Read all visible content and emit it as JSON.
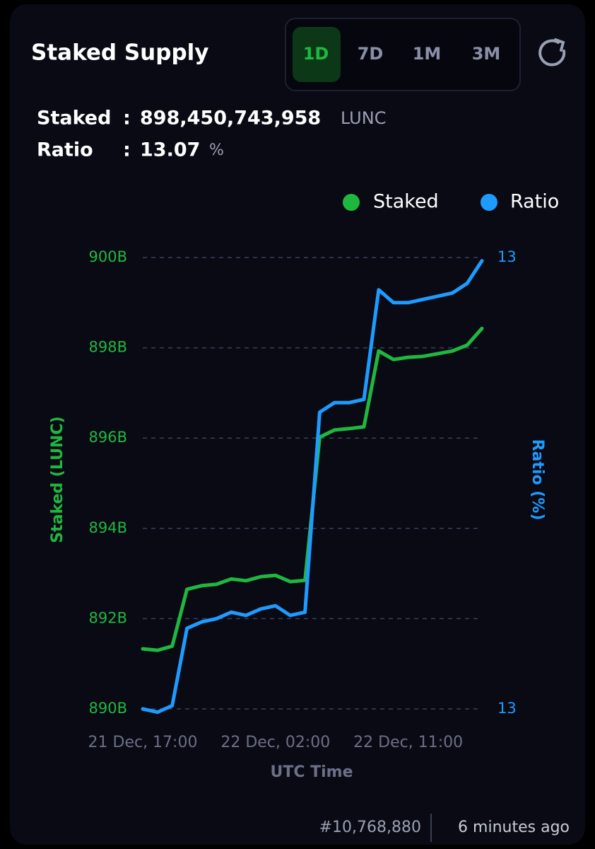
{
  "header": {
    "title": "Staked Supply",
    "tabs": [
      "1D",
      "7D",
      "1M",
      "3M"
    ]
  },
  "stats": {
    "separator": ":",
    "staked_label": "Staked",
    "staked_value": "898,450,743,958",
    "staked_unit": "LUNC",
    "ratio_label": "Ratio",
    "ratio_value": "13.07",
    "ratio_unit": "%"
  },
  "footer": {
    "block": "#10,768,880",
    "age": "6 minutes ago"
  },
  "chart_data": {
    "type": "line",
    "xlabel": "UTC Time",
    "ylabel": "Staked (LUNC)",
    "y2label": "Ratio (%)",
    "categories": [
      "21 Dec, 17:00",
      null,
      null,
      null,
      null,
      null,
      null,
      null,
      null,
      "22 Dec, 02:00",
      null,
      null,
      null,
      null,
      null,
      null,
      null,
      null,
      "22 Dec, 11:00",
      null,
      null,
      null,
      null,
      null
    ],
    "series": [
      {
        "name": "Staked",
        "color": "#1fb83f",
        "values": [
          891.33,
          891.3,
          891.39,
          892.65,
          892.73,
          892.76,
          892.88,
          892.84,
          892.93,
          892.96,
          892.82,
          892.85,
          896.02,
          896.18,
          896.21,
          896.25,
          897.93,
          897.74,
          897.79,
          897.81,
          897.87,
          897.93,
          898.06,
          898.43
        ]
      },
      {
        "name": "Ratio",
        "color": "#1e9bff",
        "axis": "y2",
        "values": [
          12.95,
          12.949,
          12.951,
          12.975,
          12.977,
          12.978,
          12.98,
          12.979,
          12.981,
          12.982,
          12.979,
          12.98,
          13.042,
          13.045,
          13.045,
          13.046,
          13.08,
          13.076,
          13.076,
          13.077,
          13.078,
          13.079,
          13.082,
          13.089
        ]
      }
    ],
    "ylim": [
      890,
      900
    ],
    "yticks": [
      {
        "value": 890,
        "label": "890B"
      },
      {
        "value": 892,
        "label": "892B"
      },
      {
        "value": 894,
        "label": "894B"
      },
      {
        "value": 896,
        "label": "896B"
      },
      {
        "value": 898,
        "label": "898B"
      },
      {
        "value": 900,
        "label": "900B"
      }
    ],
    "y2lim": [
      12.95,
      13.09
    ],
    "y2ticks": [
      {
        "value": 12.95,
        "label": "13"
      },
      {
        "value": 13.09,
        "label": "13"
      }
    ],
    "grid": true,
    "legend": "top-right"
  }
}
